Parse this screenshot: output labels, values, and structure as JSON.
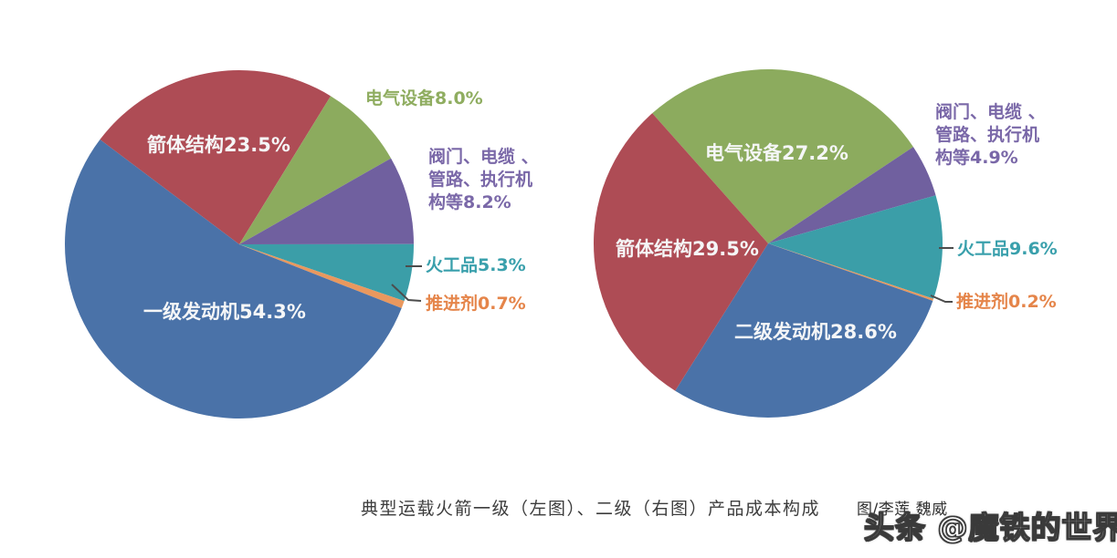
{
  "figure": {
    "caption": "典型运载火箭一级（左图）、二级（右图）产品成本构成",
    "credit": "图/李莲  魏威",
    "watermark": "头条 @魔铁的世界"
  },
  "colors": {
    "engine_blue": "#4a72a8",
    "structure_red": "#ae4c55",
    "electrical_green": "#8cab5e",
    "valves_purple": "#70609f",
    "pyro_teal": "#3b9ea8",
    "propellant_orange": "#e9985e",
    "inside_label": "#f5f6f7",
    "leader_line": "#4d4d4d",
    "caption_text": "#3d3d3d",
    "watermark_fill": "#ffffff",
    "watermark_outline": "#3a3a3a"
  },
  "chart_data": [
    {
      "type": "pie",
      "position": "left",
      "start_angle_deg": 307,
      "slices": [
        {
          "id": "rocket-body-structure",
          "label": "箭体结构",
          "value": 23.5,
          "display": "箭体结构23.5%",
          "color": "#ae4c55",
          "label_color": "#f5f6f7",
          "label_placement": "inside"
        },
        {
          "id": "electrical-equipment",
          "label": "电气设备",
          "value": 8.0,
          "display": "电气设备8.0%",
          "color": "#8cab5e",
          "label_color": "#8fad60",
          "label_placement": "outside"
        },
        {
          "id": "valves-cables-pipes-actuators",
          "label": "阀门、电缆、管路、执行机构等",
          "value": 8.2,
          "display": "阀门、电缆 、\n管路、执行机\n构等8.2%",
          "color": "#70609f",
          "label_color": "#7a68a8",
          "label_placement": "outside"
        },
        {
          "id": "pyrotechnics",
          "label": "火工品",
          "value": 5.3,
          "display": "火工品5.3%",
          "color": "#3b9ea8",
          "label_color": "#3aa0ac",
          "label_placement": "outside"
        },
        {
          "id": "propellant",
          "label": "推进剂",
          "value": 0.7,
          "display": "推进剂0.7%",
          "color": "#e9985e",
          "label_color": "#e5854a",
          "label_placement": "outside"
        },
        {
          "id": "first-stage-engine",
          "label": "一级发动机",
          "value": 54.3,
          "display": "一级发动机54.3%",
          "color": "#4a72a8",
          "label_color": "#f5f6f7",
          "label_placement": "inside"
        }
      ]
    },
    {
      "type": "pie",
      "position": "right",
      "start_angle_deg": 318.4,
      "slices": [
        {
          "id": "electrical-equipment",
          "label": "电气设备",
          "value": 27.2,
          "display": "电气设备27.2%",
          "color": "#8cab5e",
          "label_color": "#f5f6f7",
          "label_placement": "inside"
        },
        {
          "id": "valves-cables-pipes-actuators",
          "label": "阀门、电缆、管路、执行机构等",
          "value": 4.9,
          "display": "阀门、电缆 、\n管路、执行机\n构等4.9%",
          "color": "#70609f",
          "label_color": "#7a68a8",
          "label_placement": "outside"
        },
        {
          "id": "pyrotechnics",
          "label": "火工品",
          "value": 9.6,
          "display": "火工品9.6%",
          "color": "#3b9ea8",
          "label_color": "#3aa0ac",
          "label_placement": "outside"
        },
        {
          "id": "propellant",
          "label": "推进剂",
          "value": 0.2,
          "display": "推进剂0.2%",
          "color": "#e9985e",
          "label_color": "#e5854a",
          "label_placement": "outside"
        },
        {
          "id": "second-stage-engine",
          "label": "二级发动机",
          "value": 28.6,
          "display": "二级发动机28.6%",
          "color": "#4a72a8",
          "label_color": "#f5f6f7",
          "label_placement": "inside"
        },
        {
          "id": "rocket-body-structure",
          "label": "箭体结构",
          "value": 29.5,
          "display": "箭体结构29.5%",
          "color": "#ae4c55",
          "label_color": "#f5f6f7",
          "label_placement": "inside"
        }
      ]
    }
  ]
}
